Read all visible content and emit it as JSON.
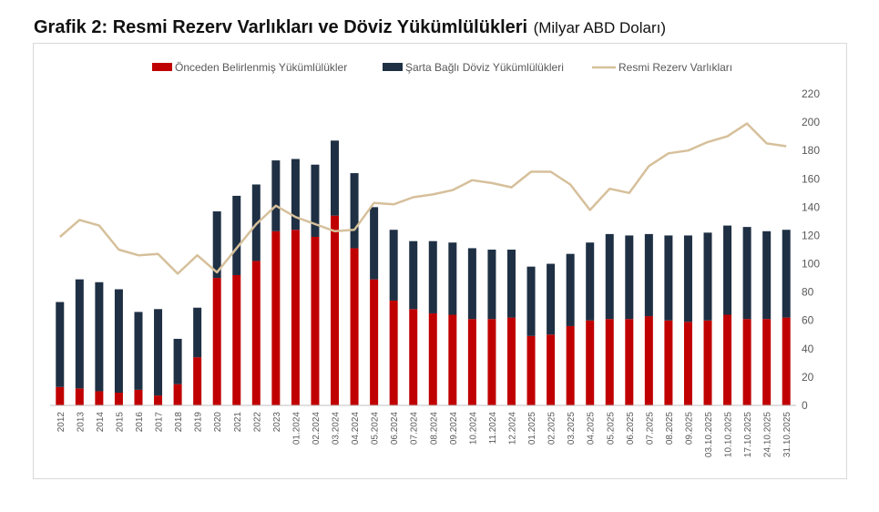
{
  "title": {
    "main": "Grafik 2: Resmi Rezerv Varlıkları ve Döviz Yükümlülükleri",
    "unit": "(Milyar ABD Doları)"
  },
  "chart_data": {
    "type": "bar",
    "stacked": true,
    "categories": [
      "2012",
      "2013",
      "2014",
      "2015",
      "2016",
      "2017",
      "2018",
      "2019",
      "2020",
      "2021",
      "2022",
      "2023",
      "01.2024",
      "02.2024",
      "03.2024",
      "04.2024",
      "05.2024",
      "06.2024",
      "07.2024",
      "08.2024",
      "09.2024",
      "10.2024",
      "11.2024",
      "12.2024",
      "01.2025",
      "02.2025",
      "03.2025",
      "04.2025",
      "05.2025",
      "06.2025",
      "07.2025",
      "08.2025",
      "09.2025",
      "03.10.2025",
      "10.10.2025",
      "17.10.2025",
      "24.10.2025",
      "31.10.2025"
    ],
    "series": [
      {
        "name": "Önceden Belirlenmiş Yükümlülükler",
        "type": "bar",
        "color": "#c00000",
        "values": [
          13,
          12,
          10,
          9,
          11,
          7,
          15,
          34,
          90,
          92,
          102,
          123,
          124,
          119,
          134,
          111,
          89,
          74,
          68,
          65,
          64,
          61,
          61,
          62,
          49,
          50,
          56,
          60,
          61,
          61,
          63,
          60,
          59,
          60,
          64,
          61,
          61,
          62
        ]
      },
      {
        "name": "Şarta Bağlı Döviz Yükümlülükleri",
        "type": "bar",
        "color": "#1f3044",
        "values": [
          60,
          77,
          77,
          73,
          55,
          61,
          32,
          35,
          47,
          56,
          54,
          50,
          50,
          51,
          53,
          53,
          51,
          50,
          48,
          51,
          51,
          50,
          49,
          48,
          49,
          50,
          51,
          55,
          60,
          59,
          58,
          60,
          61,
          62,
          63,
          65,
          62,
          62
        ]
      },
      {
        "name": "Resmi Rezerv Varlıkları",
        "type": "line",
        "color": "#d6c09b",
        "values": [
          119,
          131,
          127,
          110,
          106,
          107,
          93,
          106,
          94,
          111,
          128,
          141,
          133,
          128,
          123,
          124,
          143,
          142,
          147,
          149,
          152,
          159,
          157,
          154,
          165,
          165,
          156,
          138,
          153,
          150,
          169,
          178,
          180,
          186,
          190,
          199,
          185,
          183
        ]
      }
    ],
    "y_axis": {
      "min": 0,
      "max": 220,
      "ticks": [
        0,
        20,
        40,
        60,
        80,
        100,
        120,
        140,
        160,
        180,
        200,
        220
      ],
      "position": "right"
    },
    "legend": {
      "position": "top"
    },
    "grid": false
  }
}
